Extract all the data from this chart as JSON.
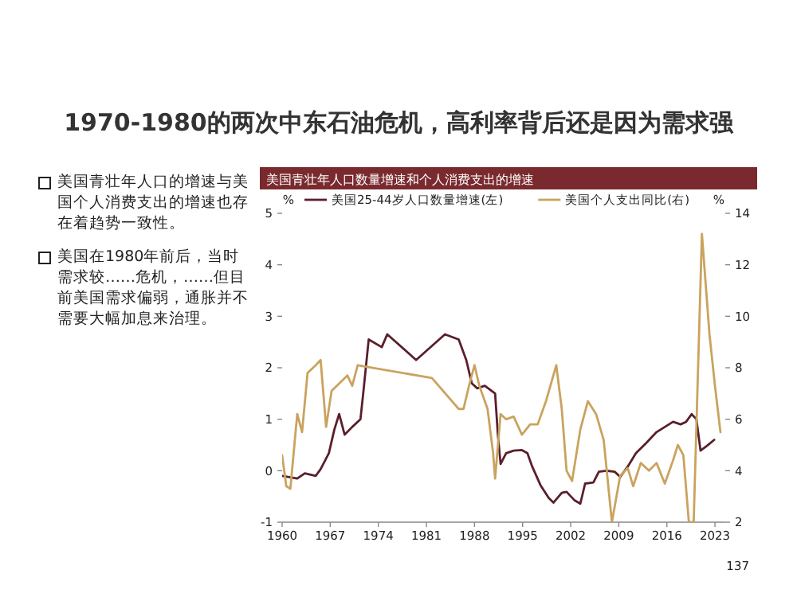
{
  "chart_data": [
    {
      "type": "other",
      "title": "1970-1980的两次中东石油危机，高利率背后还是因为需求强",
      "annotations": [
        "美国青壮年人口的增速与美国个人消费支出的增速也存在着趋势一致性。",
        "美国在1980年前后，当时需求较……危机，……但目前美国需求偏弱，通胀并不需要大幅加息来治理。"
      ]
    },
    {
      "type": "line",
      "title": "美国青壮年人口数量增速和个人消费支出的增速",
      "ylabel": "%",
      "y2label": "%",
      "xlim": [
        1960,
        2024.5
      ],
      "xticks": [
        1960,
        1967,
        1974,
        1981,
        1988,
        1995,
        2002,
        2009,
        2016,
        2023
      ],
      "ylim": [
        -1,
        5
      ],
      "yticks": [
        -1,
        0,
        1,
        2,
        3,
        4,
        5
      ],
      "y2lim": [
        2,
        14
      ],
      "y2ticks": [
        2,
        4,
        6,
        8,
        10,
        12,
        14
      ],
      "legend": "top",
      "grid": false,
      "line_style": "solid",
      "marker": "none",
      "annotations": [
        "137"
      ],
      "series": [
        {
          "name": "美国25-44岁人口数量增速(左)",
          "color": "#5a1f2b",
          "x": [
            1960.0,
            1962.2,
            1963.3,
            1964.9,
            1965.6,
            1966.8,
            1967.6,
            1968.3,
            1969.1,
            1970.2,
            1971.4,
            1971.8,
            1972.6,
            1974.5,
            1975.3,
            1979.5,
            1983.7,
            1985.7,
            1986.8,
            1987.6,
            1988.4,
            1989.5,
            1991.0,
            1991.4,
            1991.8,
            1992.6,
            1993.7,
            1994.9,
            1995.7,
            1996.4,
            1997.6,
            1998.8,
            1999.5,
            2000.7,
            2001.4,
            2002.6,
            2003.4,
            2004.1,
            2005.3,
            2006.1,
            2007.2,
            2008.4,
            2009.2,
            2010.3,
            2011.5,
            2013.0,
            2014.5,
            2015.7,
            2016.9,
            2018.0,
            2018.8,
            2019.6,
            2020.3,
            2020.9,
            2021.9,
            2022.9
          ],
          "values": [
            -0.1,
            -0.15,
            -0.05,
            -0.1,
            0.03,
            0.34,
            0.8,
            1.1,
            0.7,
            0.85,
            1.0,
            1.5,
            2.55,
            2.4,
            2.65,
            2.15,
            2.65,
            2.55,
            2.15,
            1.7,
            1.6,
            1.65,
            1.5,
            0.7,
            0.13,
            0.34,
            0.39,
            0.4,
            0.34,
            0.08,
            -0.28,
            -0.53,
            -0.62,
            -0.43,
            -0.41,
            -0.58,
            -0.64,
            -0.25,
            -0.23,
            -0.02,
            0,
            -0.02,
            -0.12,
            0.08,
            0.34,
            0.54,
            0.75,
            0.85,
            0.95,
            0.9,
            0.95,
            1.1,
            1.0,
            0.39,
            0.49,
            0.6
          ]
        },
        {
          "name": "美国个人支出同比(右)",
          "color": "#c9a35f",
          "axis": "y2",
          "x": [
            1960.0,
            1960.6,
            1961.2,
            1962.2,
            1962.9,
            1963.7,
            1964.9,
            1965.6,
            1966.4,
            1967.2,
            1969.5,
            1970.2,
            1971.0,
            1981.8,
            1985.7,
            1986.4,
            1987.2,
            1988.0,
            1988.7,
            1989.9,
            1990.7,
            1991.0,
            1991.8,
            1992.6,
            1993.7,
            1994.9,
            1996.1,
            1997.2,
            1998.4,
            1999.9,
            2000.7,
            2001.4,
            2002.2,
            2003.4,
            2004.5,
            2005.7,
            2006.8,
            2008.0,
            2009.2,
            2010.3,
            2011.1,
            2012.2,
            2013.4,
            2014.5,
            2015.7,
            2016.9,
            2017.6,
            2018.4,
            2019.2,
            2019.9,
            2021.1,
            2022.2,
            2023.0,
            2023.8
          ],
          "values": [
            4.6,
            3.4,
            3.3,
            6.2,
            5.5,
            7.8,
            8.1,
            8.3,
            5.7,
            7.1,
            7.7,
            7.3,
            8.1,
            7.6,
            6.4,
            6.4,
            7.3,
            8.1,
            7.3,
            6.4,
            4.7,
            3.7,
            6.2,
            6.0,
            6.1,
            5.4,
            5.8,
            5.8,
            6.7,
            8.1,
            6.4,
            4.0,
            3.6,
            5.6,
            6.7,
            6.2,
            5.2,
            2.0,
            3.8,
            4.1,
            3.4,
            4.3,
            4.0,
            4.3,
            3.5,
            4.4,
            5.0,
            4.6,
            2.0,
            2.0,
            13.2,
            9.3,
            7.3,
            5.5
          ]
        }
      ]
    }
  ]
}
